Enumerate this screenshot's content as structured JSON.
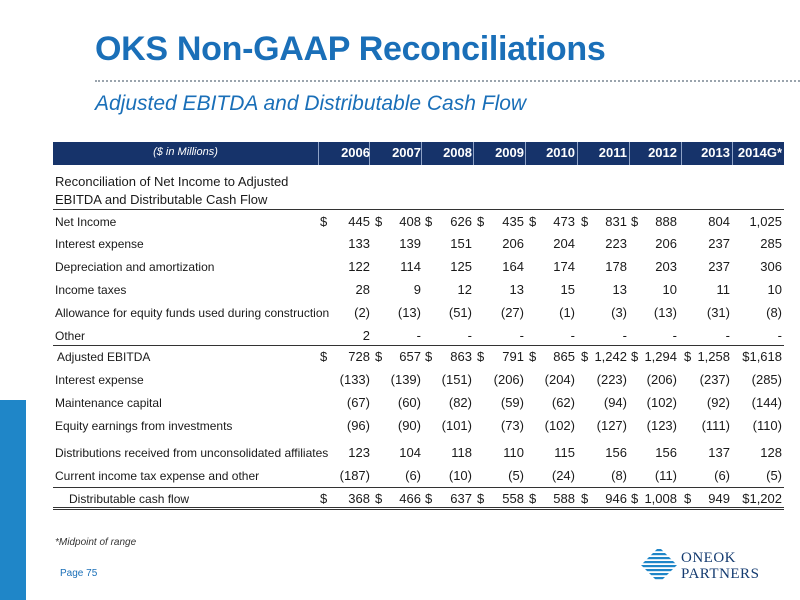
{
  "title": "OKS Non-GAAP Reconciliations",
  "subtitle": "Adjusted EBITDA and Distributable Cash Flow",
  "table": {
    "unit_label": "($ in Millions)",
    "years": [
      "2006",
      "2007",
      "2008",
      "2009",
      "2010",
      "2011",
      "2012",
      "2013",
      "2014G*"
    ],
    "section_title_line1": "Reconciliation of Net Income to  Adjusted",
    "section_title_line2": "EBITDA and Distributable Cash Flow",
    "rows": [
      {
        "label": "Net Income",
        "dollar": true,
        "values": [
          "445",
          "408",
          "626",
          "435",
          "473",
          "831",
          "888",
          "804",
          "1,025"
        ],
        "dollars": [
          "$",
          "$",
          "$",
          "$",
          "$",
          "$",
          "$",
          "",
          ""
        ]
      },
      {
        "label": "Interest expense",
        "values": [
          "133",
          "139",
          "151",
          "206",
          "204",
          "223",
          "206",
          "237",
          "285"
        ]
      },
      {
        "label": "Depreciation and amortization",
        "values": [
          "122",
          "114",
          "125",
          "164",
          "174",
          "178",
          "203",
          "237",
          "306"
        ]
      },
      {
        "label": "Income taxes",
        "values": [
          "28",
          "9",
          "12",
          "13",
          "15",
          "13",
          "10",
          "11",
          "10"
        ]
      },
      {
        "label": "Allowance for equity funds used during construction",
        "values": [
          "(2)",
          "(13)",
          "(51)",
          "(27)",
          "(1)",
          "(3)",
          "(13)",
          "(31)",
          "(8)"
        ]
      },
      {
        "label": "Other",
        "values": [
          "2",
          "-",
          "-",
          "-",
          "-",
          "-",
          "-",
          "-",
          "-"
        ]
      },
      {
        "label": "Adjusted EBITDA",
        "values": [
          "728",
          "657",
          "863",
          "791",
          "865",
          "1,242",
          "1,294",
          "1,258",
          "$1,618"
        ],
        "dollars": [
          "$",
          "$",
          "$",
          "$",
          "$",
          "$",
          "$",
          "$",
          ""
        ]
      },
      {
        "label": "Interest expense",
        "values": [
          "(133)",
          "(139)",
          "(151)",
          "(206)",
          "(204)",
          "(223)",
          "(206)",
          "(237)",
          "(285)"
        ]
      },
      {
        "label": "Maintenance capital",
        "values": [
          "(67)",
          "(60)",
          "(82)",
          "(59)",
          "(62)",
          "(94)",
          "(102)",
          "(92)",
          "(144)"
        ]
      },
      {
        "label": "Equity earnings from investments",
        "values": [
          "(96)",
          "(90)",
          "(101)",
          "(73)",
          "(102)",
          "(127)",
          "(123)",
          "(111)",
          "(110)"
        ]
      },
      {
        "label": "Distributions received from unconsolidated affiliates",
        "values": [
          "123",
          "104",
          "118",
          "110",
          "115",
          "156",
          "156",
          "137",
          "128"
        ]
      },
      {
        "label": "Current income tax expense and other",
        "values": [
          "(187)",
          "(6)",
          "(10)",
          "(5)",
          "(24)",
          "(8)",
          "(11)",
          "(6)",
          "(5)"
        ]
      },
      {
        "label": "Distributable cash flow",
        "values": [
          "368",
          "466",
          "637",
          "558",
          "588",
          "946",
          "1,008",
          "949",
          "$1,202"
        ],
        "dollars": [
          "$",
          "$",
          "$",
          "$",
          "$",
          "$",
          "$",
          "$",
          ""
        ]
      }
    ]
  },
  "footnote": "*Midpoint of range",
  "page_label": "Page 75",
  "logo": {
    "line1": "ONEOK",
    "line2": "PARTNERS"
  },
  "colors": {
    "header_bg": "#16336a",
    "title": "#1a6fb8",
    "left_bar": "#1f86c8"
  }
}
